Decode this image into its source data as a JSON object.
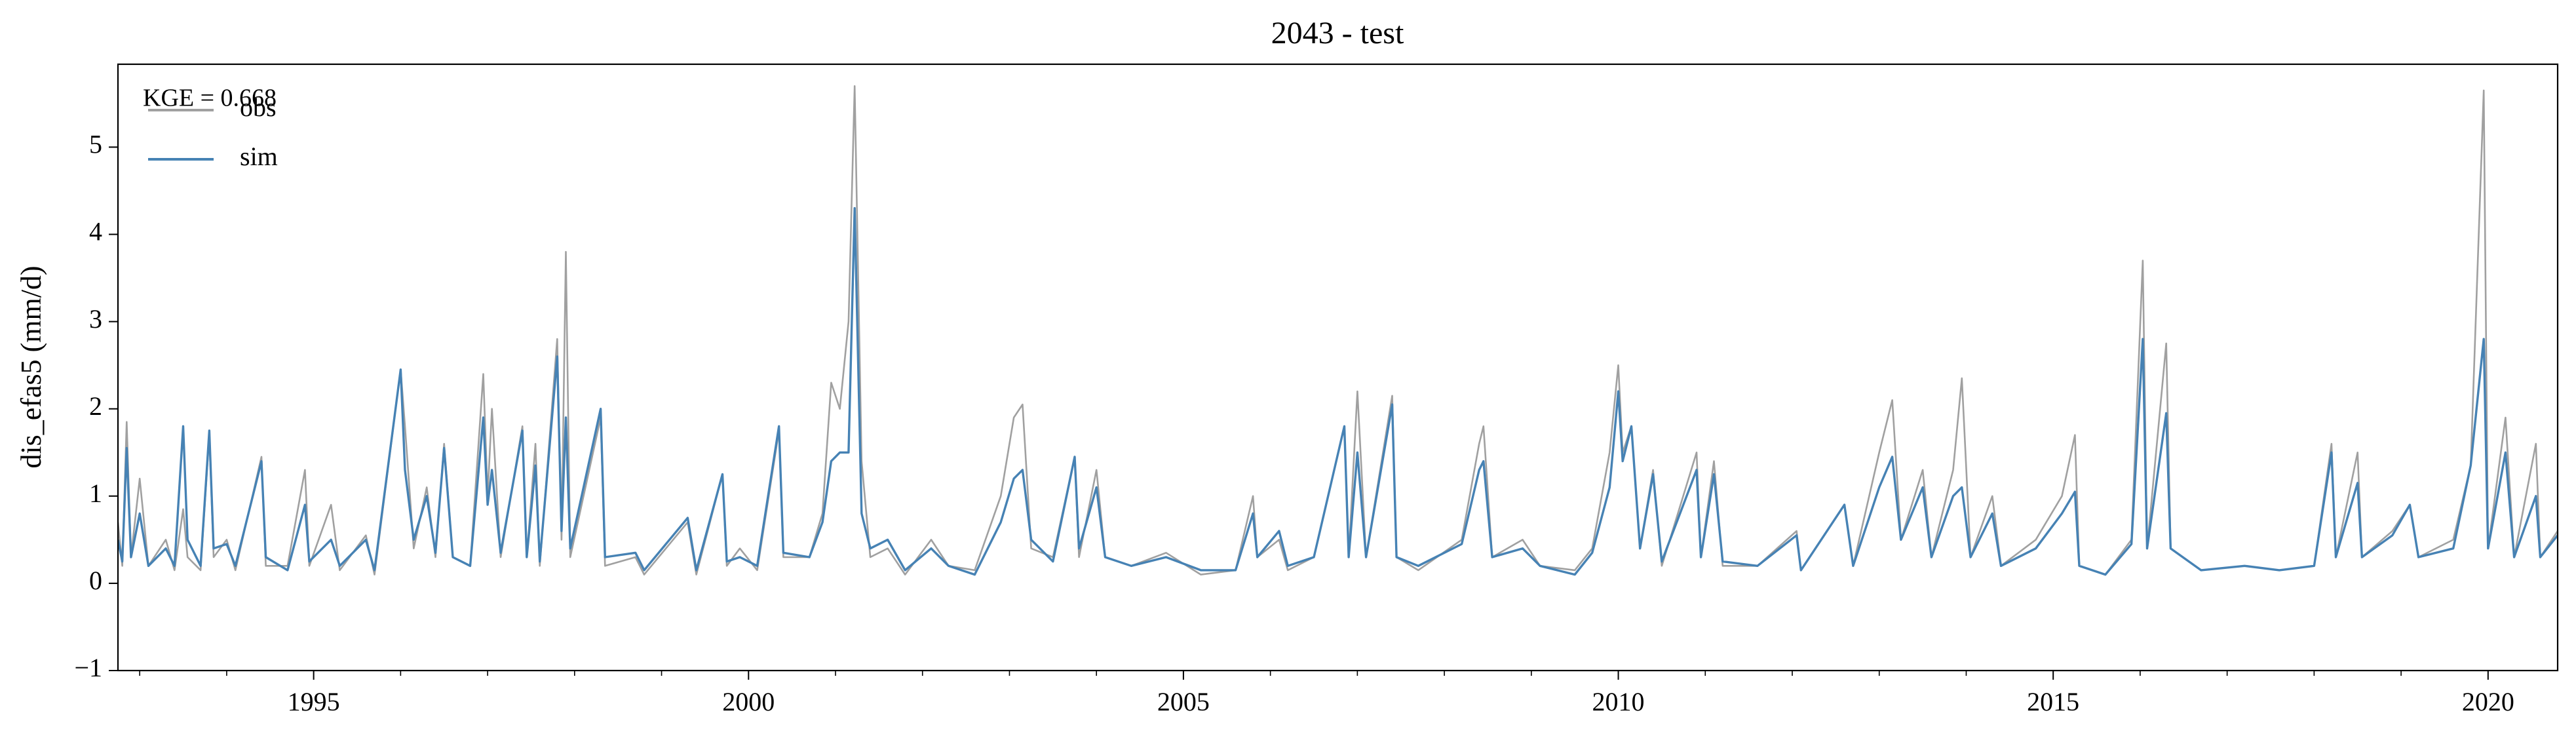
{
  "chart_data": {
    "type": "line",
    "title": "2043 - test",
    "ylabel": "dis_efas5 (mm/d)",
    "annotation": "KGE = 0.668",
    "legend": "upper left",
    "grid": false,
    "xlim": [
      1992.75,
      2020.8
    ],
    "xticks": [
      1995,
      2000,
      2005,
      2010,
      2015,
      2020
    ],
    "xminorticks": [
      1993,
      1994,
      1996,
      1997,
      1998,
      1999,
      2001,
      2002,
      2003,
      2004,
      2006,
      2007,
      2008,
      2009,
      2011,
      2012,
      2013,
      2014,
      2016,
      2017,
      2018,
      2019
    ],
    "ylim": [
      -1,
      5.95
    ],
    "yticks": [
      {
        "value": -1,
        "label": "−1"
      },
      0,
      1,
      2,
      3,
      4,
      5
    ],
    "x": [
      1992.75,
      1992.8,
      1992.85,
      1992.9,
      1993.0,
      1993.1,
      1993.3,
      1993.4,
      1993.5,
      1993.55,
      1993.7,
      1993.8,
      1993.85,
      1994.0,
      1994.1,
      1994.4,
      1994.45,
      1994.7,
      1994.9,
      1994.95,
      1995.2,
      1995.3,
      1995.6,
      1995.7,
      1996.0,
      1996.05,
      1996.15,
      1996.3,
      1996.4,
      1996.5,
      1996.6,
      1996.8,
      1996.95,
      1997.0,
      1997.05,
      1997.15,
      1997.4,
      1997.45,
      1997.55,
      1997.6,
      1997.8,
      1997.85,
      1997.9,
      1997.95,
      1998.3,
      1998.35,
      1998.7,
      1998.8,
      1999.3,
      1999.4,
      1999.7,
      1999.75,
      1999.9,
      2000.1,
      2000.35,
      2000.4,
      2000.7,
      2000.85,
      2000.95,
      2001.05,
      2001.15,
      2001.22,
      2001.3,
      2001.4,
      2001.6,
      2001.8,
      2002.1,
      2002.3,
      2002.6,
      2002.9,
      2003.05,
      2003.15,
      2003.25,
      2003.5,
      2003.75,
      2003.8,
      2004.0,
      2004.1,
      2004.4,
      2004.8,
      2005.2,
      2005.6,
      2005.8,
      2005.85,
      2006.1,
      2006.2,
      2006.5,
      2006.85,
      2006.9,
      2007.0,
      2007.1,
      2007.4,
      2007.45,
      2007.7,
      2008.2,
      2008.4,
      2008.45,
      2008.55,
      2008.9,
      2009.1,
      2009.5,
      2009.7,
      2009.9,
      2010.0,
      2010.05,
      2010.15,
      2010.25,
      2010.4,
      2010.5,
      2010.9,
      2010.95,
      2011.1,
      2011.2,
      2011.6,
      2012.05,
      2012.1,
      2012.6,
      2012.7,
      2013.0,
      2013.15,
      2013.25,
      2013.5,
      2013.6,
      2013.85,
      2013.95,
      2014.05,
      2014.3,
      2014.4,
      2014.8,
      2015.1,
      2015.25,
      2015.3,
      2015.6,
      2015.9,
      2016.03,
      2016.08,
      2016.3,
      2016.35,
      2016.7,
      2017.2,
      2017.6,
      2018.0,
      2018.2,
      2018.25,
      2018.5,
      2018.55,
      2018.9,
      2019.1,
      2019.2,
      2019.6,
      2019.8,
      2019.95,
      2020.0,
      2020.2,
      2020.3,
      2020.55,
      2020.6,
      2020.8
    ],
    "series": [
      {
        "name": "obs",
        "color": "#a0a0a0",
        "values": [
          0.7,
          0.2,
          1.85,
          0.3,
          1.2,
          0.2,
          0.5,
          0.15,
          0.85,
          0.3,
          0.15,
          1.7,
          0.3,
          0.5,
          0.15,
          1.45,
          0.2,
          0.2,
          1.3,
          0.2,
          0.9,
          0.15,
          0.55,
          0.1,
          2.45,
          1.8,
          0.4,
          1.1,
          0.3,
          1.6,
          0.3,
          0.2,
          2.4,
          1.0,
          2.0,
          0.3,
          1.8,
          0.3,
          1.6,
          0.2,
          2.8,
          0.5,
          3.8,
          0.3,
          1.9,
          0.2,
          0.3,
          0.1,
          0.7,
          0.1,
          1.25,
          0.2,
          0.4,
          0.15,
          1.75,
          0.3,
          0.3,
          0.8,
          2.3,
          2.0,
          3.0,
          5.7,
          1.4,
          0.3,
          0.4,
          0.1,
          0.5,
          0.2,
          0.15,
          1.0,
          1.9,
          2.05,
          0.4,
          0.3,
          1.45,
          0.3,
          1.3,
          0.3,
          0.2,
          0.35,
          0.1,
          0.15,
          1.0,
          0.3,
          0.5,
          0.15,
          0.3,
          1.8,
          0.3,
          2.2,
          0.3,
          2.15,
          0.3,
          0.15,
          0.5,
          1.6,
          1.8,
          0.3,
          0.5,
          0.2,
          0.15,
          0.4,
          1.5,
          2.5,
          1.5,
          1.8,
          0.4,
          1.3,
          0.2,
          1.5,
          0.3,
          1.4,
          0.2,
          0.2,
          0.6,
          0.15,
          0.9,
          0.2,
          1.5,
          2.1,
          0.5,
          1.3,
          0.3,
          1.3,
          2.35,
          0.3,
          1.0,
          0.2,
          0.5,
          1.0,
          1.7,
          0.2,
          0.1,
          0.5,
          3.7,
          0.4,
          2.75,
          0.4,
          0.15,
          0.2,
          0.15,
          0.2,
          1.6,
          0.3,
          1.5,
          0.3,
          0.6,
          0.9,
          0.3,
          0.5,
          1.35,
          5.65,
          0.4,
          1.9,
          0.3,
          1.6,
          0.3,
          0.6
        ]
      },
      {
        "name": "sim",
        "color": "#4682b4",
        "values": [
          0.5,
          0.25,
          1.55,
          0.3,
          0.8,
          0.2,
          0.4,
          0.2,
          1.8,
          0.5,
          0.2,
          1.75,
          0.4,
          0.45,
          0.2,
          1.4,
          0.3,
          0.15,
          0.9,
          0.25,
          0.5,
          0.2,
          0.5,
          0.15,
          2.45,
          1.3,
          0.5,
          1.0,
          0.35,
          1.55,
          0.3,
          0.2,
          1.9,
          0.9,
          1.3,
          0.35,
          1.75,
          0.3,
          1.35,
          0.25,
          2.6,
          0.6,
          1.9,
          0.4,
          2.0,
          0.3,
          0.35,
          0.15,
          0.75,
          0.15,
          1.25,
          0.25,
          0.3,
          0.2,
          1.8,
          0.35,
          0.3,
          0.7,
          1.4,
          1.5,
          1.5,
          4.3,
          0.8,
          0.4,
          0.5,
          0.15,
          0.4,
          0.2,
          0.1,
          0.7,
          1.2,
          1.3,
          0.5,
          0.25,
          1.45,
          0.4,
          1.1,
          0.3,
          0.2,
          0.3,
          0.15,
          0.15,
          0.8,
          0.3,
          0.6,
          0.2,
          0.3,
          1.8,
          0.3,
          1.5,
          0.3,
          2.05,
          0.3,
          0.2,
          0.45,
          1.3,
          1.4,
          0.3,
          0.4,
          0.2,
          0.1,
          0.35,
          1.1,
          2.2,
          1.4,
          1.8,
          0.4,
          1.25,
          0.25,
          1.3,
          0.3,
          1.25,
          0.25,
          0.2,
          0.55,
          0.15,
          0.9,
          0.2,
          1.1,
          1.45,
          0.5,
          1.1,
          0.3,
          1.0,
          1.1,
          0.3,
          0.8,
          0.2,
          0.4,
          0.8,
          1.05,
          0.2,
          0.1,
          0.45,
          2.8,
          0.4,
          1.95,
          0.4,
          0.15,
          0.2,
          0.15,
          0.2,
          1.5,
          0.3,
          1.15,
          0.3,
          0.55,
          0.9,
          0.3,
          0.4,
          1.35,
          2.8,
          0.4,
          1.5,
          0.3,
          1.0,
          0.3,
          0.55
        ]
      }
    ]
  }
}
